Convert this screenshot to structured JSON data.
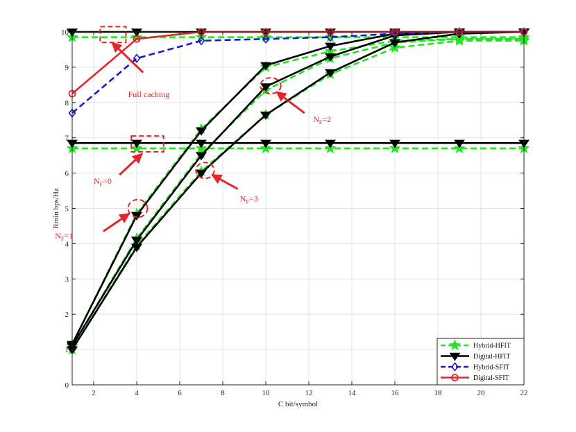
{
  "chart_data": {
    "type": "line",
    "xlabel": "C bit/symbol",
    "ylabel": "Rmin bps/Hz",
    "xlim": [
      1,
      22
    ],
    "ylim": [
      0,
      10
    ],
    "x_ticks": [
      2,
      4,
      6,
      8,
      10,
      12,
      14,
      16,
      18,
      20,
      22
    ],
    "y_ticks": [
      0,
      1,
      2,
      3,
      4,
      5,
      6,
      7,
      8,
      9,
      10
    ],
    "grid": true,
    "legend_position": "bottom-right",
    "colors": {
      "hybrid_hfit": "#22e622",
      "digital_hfit": "#000000",
      "hybrid_sfit": "#1a1acc",
      "digital_sfit": "#e3262a",
      "annotation": "#e3262a"
    },
    "legend": [
      {
        "label": "Hybrid-HFIT",
        "color": "#22e622",
        "dash": "dashed",
        "marker": "star"
      },
      {
        "label": "Digital-HFIT",
        "color": "#000000",
        "dash": "solid",
        "marker": "triangle-down"
      },
      {
        "label": "Hybrid-SFIT",
        "color": "#1a1acc",
        "dash": "dashed",
        "marker": "diamond"
      },
      {
        "label": "Digital-SFIT",
        "color": "#e3262a",
        "dash": "solid",
        "marker": "circle"
      }
    ],
    "series": [
      {
        "legend_index": 0,
        "group": "NF=0",
        "color": "#22e622",
        "dash": "dashed",
        "marker": "star",
        "x": [
          1,
          4,
          7,
          10,
          13,
          16,
          19,
          22
        ],
        "y": [
          6.7,
          6.7,
          6.7,
          6.7,
          6.7,
          6.7,
          6.7,
          6.7
        ]
      },
      {
        "legend_index": 1,
        "group": "NF=0",
        "color": "#000000",
        "dash": "solid",
        "marker": "triangle-down",
        "x": [
          1,
          4,
          7,
          10,
          13,
          16,
          19,
          22
        ],
        "y": [
          6.85,
          6.85,
          6.85,
          6.85,
          6.85,
          6.85,
          6.85,
          6.85
        ]
      },
      {
        "legend_index": 0,
        "group": "NF=1",
        "color": "#22e622",
        "dash": "dashed",
        "marker": "star",
        "x": [
          1,
          4,
          7,
          10,
          13,
          16,
          19,
          22
        ],
        "y": [
          1.15,
          4.85,
          7.25,
          9.0,
          9.45,
          9.75,
          9.8,
          9.8
        ]
      },
      {
        "legend_index": 1,
        "group": "NF=1",
        "color": "#000000",
        "dash": "solid",
        "marker": "triangle-down",
        "x": [
          1,
          4,
          7,
          10,
          13,
          16,
          19,
          22
        ],
        "y": [
          1.15,
          4.8,
          7.2,
          9.05,
          9.6,
          9.95,
          10.0,
          10.0
        ]
      },
      {
        "legend_index": 0,
        "group": "NF=2",
        "color": "#22e622",
        "dash": "dashed",
        "marker": "star",
        "x": [
          1,
          4,
          7,
          10,
          13,
          16,
          19,
          22
        ],
        "y": [
          1.1,
          4.15,
          6.55,
          8.35,
          9.25,
          9.7,
          9.8,
          9.8
        ]
      },
      {
        "legend_index": 1,
        "group": "NF=2",
        "color": "#000000",
        "dash": "solid",
        "marker": "triangle-down",
        "x": [
          1,
          4,
          7,
          10,
          13,
          16,
          19,
          22
        ],
        "y": [
          1.1,
          4.1,
          6.5,
          8.45,
          9.3,
          9.9,
          10.0,
          10.0
        ]
      },
      {
        "legend_index": 0,
        "group": "NF=3",
        "color": "#22e622",
        "dash": "dashed",
        "marker": "star",
        "x": [
          1,
          4,
          7,
          10,
          13,
          16,
          19,
          22
        ],
        "y": [
          1.0,
          3.95,
          6.05,
          7.65,
          8.8,
          9.55,
          9.75,
          9.75
        ]
      },
      {
        "legend_index": 1,
        "group": "NF=3",
        "color": "#000000",
        "dash": "solid",
        "marker": "triangle-down",
        "x": [
          1,
          4,
          7,
          10,
          13,
          16,
          19,
          22
        ],
        "y": [
          1.0,
          3.9,
          6.0,
          7.65,
          8.85,
          9.7,
          9.95,
          10.0
        ]
      },
      {
        "legend_index": 0,
        "group": "Full caching",
        "color": "#22e622",
        "dash": "dashed",
        "marker": "star",
        "x": [
          1,
          4,
          7,
          10,
          13,
          16,
          19,
          22
        ],
        "y": [
          9.85,
          9.85,
          9.85,
          9.85,
          9.85,
          9.85,
          9.85,
          9.85
        ]
      },
      {
        "legend_index": 1,
        "group": "Full caching",
        "color": "#000000",
        "dash": "solid",
        "marker": "triangle-down",
        "x": [
          1,
          4,
          7,
          10,
          13,
          16,
          19,
          22
        ],
        "y": [
          10.0,
          10.0,
          10.0,
          10.0,
          10.0,
          10.0,
          10.0,
          10.0
        ]
      },
      {
        "legend_index": 2,
        "group": "Full caching",
        "color": "#1a1acc",
        "dash": "dashed",
        "marker": "diamond",
        "x": [
          1,
          4,
          7,
          10,
          13,
          16,
          19,
          22
        ],
        "y": [
          7.7,
          9.25,
          9.75,
          9.8,
          9.85,
          9.95,
          10.0,
          10.0
        ]
      },
      {
        "legend_index": 3,
        "group": "Full caching",
        "color": "#e3262a",
        "dash": "solid",
        "marker": "circle",
        "x": [
          1,
          4,
          7,
          10,
          13,
          16,
          19,
          22
        ],
        "y": [
          8.25,
          9.8,
          10.0,
          10.0,
          10.0,
          10.0,
          10.0,
          10.0
        ]
      }
    ],
    "annotations": [
      {
        "name": "full-caching",
        "text": "Full caching",
        "subscript": "",
        "after": "",
        "box": {
          "x0": 2.3,
          "x1": 3.5,
          "y0": 9.7,
          "y1": 10.15
        },
        "shape": "rect",
        "arrow_from": [
          4.3,
          8.85
        ],
        "arrow_to": [
          2.85,
          9.7
        ],
        "text_at": [
          3.6,
          8.15
        ]
      },
      {
        "name": "nf0",
        "text": "N",
        "subscript": "F",
        "after": "=0",
        "box": {
          "x0": 3.75,
          "x1": 5.25,
          "y0": 6.6,
          "y1": 7.05
        },
        "shape": "rect",
        "arrow_from": [
          3.2,
          5.95
        ],
        "arrow_to": [
          4.25,
          6.55
        ],
        "text_at": [
          2.0,
          5.7
        ]
      },
      {
        "name": "nf1",
        "text": "N",
        "subscript": "F",
        "after": "=1",
        "box": {
          "x0": 3.6,
          "x1": 4.5,
          "y0": 4.75,
          "y1": 5.25
        },
        "shape": "ellipse",
        "arrow_from": [
          2.45,
          4.35
        ],
        "arrow_to": [
          3.65,
          4.85
        ],
        "text_at": [
          0.2,
          4.15
        ]
      },
      {
        "name": "nf2",
        "text": "N",
        "subscript": "F",
        "after": "=2",
        "box": {
          "x0": 9.75,
          "x1": 10.7,
          "y0": 8.25,
          "y1": 8.7
        },
        "shape": "ellipse",
        "arrow_from": [
          11.8,
          7.7
        ],
        "arrow_to": [
          10.5,
          8.3
        ],
        "text_at": [
          12.2,
          7.45
        ]
      },
      {
        "name": "nf3",
        "text": "N",
        "subscript": "F",
        "after": "=3",
        "box": {
          "x0": 6.75,
          "x1": 7.6,
          "y0": 5.85,
          "y1": 6.3
        },
        "shape": "ellipse",
        "arrow_from": [
          8.7,
          5.55
        ],
        "arrow_to": [
          7.5,
          5.95
        ],
        "text_at": [
          8.8,
          5.2
        ]
      }
    ]
  }
}
